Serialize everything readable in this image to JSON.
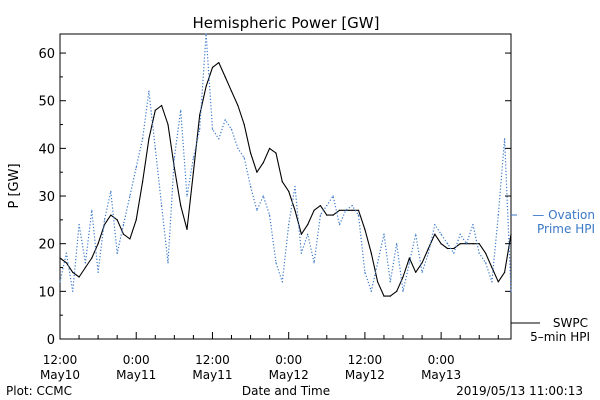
{
  "colors": {
    "swpc": "#000000",
    "ovation": "#3a78c8",
    "axis": "#000000",
    "background": "#ffffff"
  },
  "chart_data": {
    "type": "line",
    "title": "Hemispheric Power [GW]",
    "xlabel": "Date and Time",
    "ylabel": "P [GW]",
    "ylim": [
      0,
      64
    ],
    "xlim": [
      "2019-05-10 12:00",
      "2019-05-13 11:00"
    ],
    "grid": false,
    "y_ticks": [
      0,
      10,
      20,
      30,
      40,
      50,
      60
    ],
    "x_ticks": [
      {
        "t": "2019-05-10 12:00",
        "time": "12:00",
        "date": "May10"
      },
      {
        "t": "2019-05-11 00:00",
        "time": "0:00",
        "date": "May11"
      },
      {
        "t": "2019-05-11 12:00",
        "time": "12:00",
        "date": "May11"
      },
      {
        "t": "2019-05-12 00:00",
        "time": "0:00",
        "date": "May12"
      },
      {
        "t": "2019-05-12 12:00",
        "time": "12:00",
        "date": "May12"
      },
      {
        "t": "2019-05-13 00:00",
        "time": "0:00",
        "date": "May13"
      }
    ],
    "legend": [
      {
        "label": "— Ovation",
        "label2": "Prime HPI",
        "series": "Ovation Prime HPI",
        "position": "right-middle"
      },
      {
        "label": "SWPC",
        "label2": "5–min HPI",
        "series": "SWPC 5-min HPI",
        "position": "right-bottom"
      }
    ],
    "series": [
      {
        "name": "SWPC 5-min HPI",
        "style": "solid",
        "x": [
          "2019-05-10 12:00",
          "2019-05-10 13:00",
          "2019-05-10 14:00",
          "2019-05-10 15:00",
          "2019-05-10 16:00",
          "2019-05-10 17:00",
          "2019-05-10 18:00",
          "2019-05-10 19:00",
          "2019-05-10 20:00",
          "2019-05-10 21:00",
          "2019-05-10 22:00",
          "2019-05-10 23:00",
          "2019-05-11 00:00",
          "2019-05-11 01:00",
          "2019-05-11 02:00",
          "2019-05-11 03:00",
          "2019-05-11 04:00",
          "2019-05-11 05:00",
          "2019-05-11 06:00",
          "2019-05-11 07:00",
          "2019-05-11 08:00",
          "2019-05-11 09:00",
          "2019-05-11 10:00",
          "2019-05-11 11:00",
          "2019-05-11 12:00",
          "2019-05-11 13:00",
          "2019-05-11 14:00",
          "2019-05-11 15:00",
          "2019-05-11 16:00",
          "2019-05-11 17:00",
          "2019-05-11 18:00",
          "2019-05-11 19:00",
          "2019-05-11 20:00",
          "2019-05-11 21:00",
          "2019-05-11 22:00",
          "2019-05-11 23:00",
          "2019-05-12 00:00",
          "2019-05-12 01:00",
          "2019-05-12 02:00",
          "2019-05-12 03:00",
          "2019-05-12 04:00",
          "2019-05-12 05:00",
          "2019-05-12 06:00",
          "2019-05-12 07:00",
          "2019-05-12 08:00",
          "2019-05-12 09:00",
          "2019-05-12 10:00",
          "2019-05-12 11:00",
          "2019-05-12 12:00",
          "2019-05-12 13:00",
          "2019-05-12 14:00",
          "2019-05-12 15:00",
          "2019-05-12 16:00",
          "2019-05-12 17:00",
          "2019-05-12 18:00",
          "2019-05-12 19:00",
          "2019-05-12 20:00",
          "2019-05-12 21:00",
          "2019-05-12 22:00",
          "2019-05-12 23:00",
          "2019-05-13 00:00",
          "2019-05-13 01:00",
          "2019-05-13 02:00",
          "2019-05-13 03:00",
          "2019-05-13 04:00",
          "2019-05-13 05:00",
          "2019-05-13 06:00",
          "2019-05-13 07:00",
          "2019-05-13 08:00",
          "2019-05-13 09:00",
          "2019-05-13 10:00",
          "2019-05-13 11:00"
        ],
        "values": [
          17,
          16,
          14,
          13,
          15,
          17,
          20,
          24,
          26,
          25,
          22,
          21,
          25,
          33,
          42,
          48,
          49,
          45,
          36,
          28,
          23,
          35,
          47,
          53,
          57,
          58,
          55,
          52,
          49,
          45,
          39,
          35,
          37,
          40,
          39,
          33,
          31,
          27,
          22,
          24,
          27,
          28,
          26,
          26,
          27,
          27,
          27,
          27,
          23,
          18,
          12,
          9,
          9,
          10,
          13,
          17,
          14,
          16,
          19,
          22,
          20,
          19,
          19,
          20,
          20,
          20,
          20,
          18,
          15,
          12,
          14,
          22
        ]
      },
      {
        "name": "Ovation Prime HPI",
        "style": "dotted",
        "x": [
          "2019-05-10 12:00",
          "2019-05-10 13:00",
          "2019-05-10 14:00",
          "2019-05-10 15:00",
          "2019-05-10 16:00",
          "2019-05-10 17:00",
          "2019-05-10 18:00",
          "2019-05-10 19:00",
          "2019-05-10 20:00",
          "2019-05-10 21:00",
          "2019-05-10 22:00",
          "2019-05-10 23:00",
          "2019-05-11 00:00",
          "2019-05-11 01:00",
          "2019-05-11 02:00",
          "2019-05-11 03:00",
          "2019-05-11 04:00",
          "2019-05-11 05:00",
          "2019-05-11 06:00",
          "2019-05-11 07:00",
          "2019-05-11 08:00",
          "2019-05-11 09:00",
          "2019-05-11 10:00",
          "2019-05-11 11:00",
          "2019-05-11 12:00",
          "2019-05-11 13:00",
          "2019-05-11 14:00",
          "2019-05-11 15:00",
          "2019-05-11 16:00",
          "2019-05-11 17:00",
          "2019-05-11 18:00",
          "2019-05-11 19:00",
          "2019-05-11 20:00",
          "2019-05-11 21:00",
          "2019-05-11 22:00",
          "2019-05-11 23:00",
          "2019-05-12 00:00",
          "2019-05-12 01:00",
          "2019-05-12 02:00",
          "2019-05-12 03:00",
          "2019-05-12 04:00",
          "2019-05-12 05:00",
          "2019-05-12 06:00",
          "2019-05-12 07:00",
          "2019-05-12 08:00",
          "2019-05-12 09:00",
          "2019-05-12 10:00",
          "2019-05-12 11:00",
          "2019-05-12 12:00",
          "2019-05-12 13:00",
          "2019-05-12 14:00",
          "2019-05-12 15:00",
          "2019-05-12 16:00",
          "2019-05-12 17:00",
          "2019-05-12 18:00",
          "2019-05-12 19:00",
          "2019-05-12 20:00",
          "2019-05-12 21:00",
          "2019-05-12 22:00",
          "2019-05-12 23:00",
          "2019-05-13 00:00",
          "2019-05-13 01:00",
          "2019-05-13 02:00",
          "2019-05-13 03:00",
          "2019-05-13 04:00",
          "2019-05-13 05:00",
          "2019-05-13 06:00",
          "2019-05-13 07:00",
          "2019-05-13 08:00",
          "2019-05-13 09:00",
          "2019-05-13 10:00",
          "2019-05-13 11:00"
        ],
        "values": [
          12,
          18,
          10,
          24,
          16,
          27,
          14,
          25,
          31,
          18,
          24,
          30,
          36,
          42,
          52,
          40,
          28,
          16,
          38,
          48,
          30,
          38,
          44,
          64,
          44,
          42,
          46,
          44,
          40,
          38,
          32,
          27,
          30,
          26,
          16,
          12,
          24,
          32,
          18,
          22,
          16,
          26,
          28,
          30,
          24,
          27,
          28,
          26,
          14,
          10,
          16,
          22,
          12,
          20,
          10,
          16,
          22,
          14,
          18,
          24,
          22,
          20,
          18,
          22,
          20,
          24,
          18,
          16,
          12,
          26,
          42,
          10
        ]
      }
    ]
  },
  "footer": {
    "plot_credit": "Plot: CCMC",
    "timestamp": "2019/05/13 11:00:13"
  }
}
